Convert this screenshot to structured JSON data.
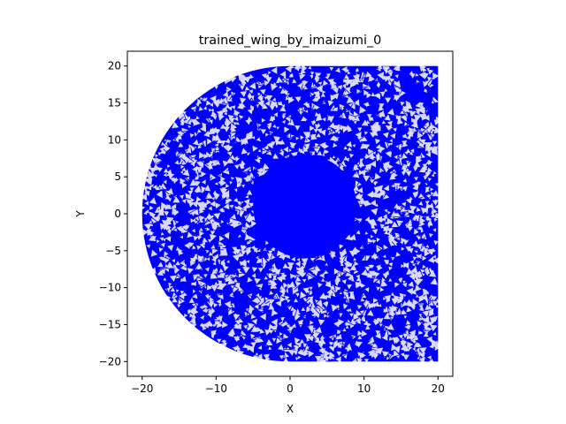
{
  "chart_data": {
    "type": "mesh",
    "title": "trained_wing_by_imaizumi_0",
    "xlabel": "X",
    "ylabel": "Y",
    "xlim": [
      -22,
      22
    ],
    "ylim": [
      -22,
      22
    ],
    "xticks": [
      -20,
      -10,
      0,
      10,
      20
    ],
    "yticks": [
      -20,
      -15,
      -10,
      -5,
      0,
      5,
      10,
      15,
      20
    ],
    "grid": false,
    "mesh_color": "#0000ff",
    "domain_boundary": {
      "description_values": "semicircle of radius 20 centered at origin (x <= 0) joined to rectangle x in [0, 20], y in [-20, 20]",
      "radius": 20,
      "x_right": 20,
      "y_range": [
        -20,
        20
      ]
    },
    "dense_region": {
      "center": [
        2,
        1
      ],
      "radius": 7
    }
  }
}
